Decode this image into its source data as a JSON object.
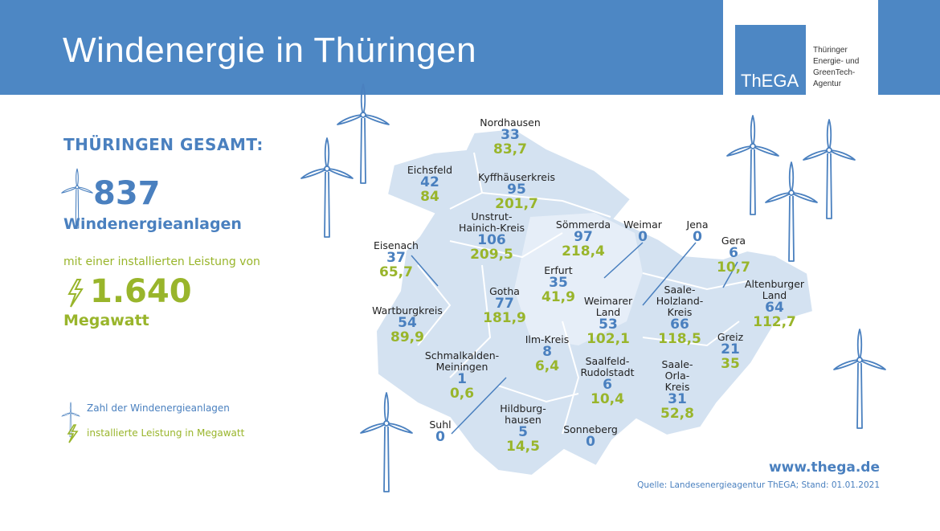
{
  "header": {
    "title": "Windenergie in Thüringen"
  },
  "logo": {
    "text": "ThEGA",
    "subtitle": [
      "Thüringer",
      "Energie- und",
      "GreenTech-",
      "Agentur"
    ]
  },
  "summary": {
    "heading": "THÜRINGEN GESAMT:",
    "turbines": "837",
    "turbines_label": "Windenergieanlagen",
    "capacity_intro": "mit einer installierten Leistung von",
    "capacity": "1.640",
    "capacity_label": "Megawatt"
  },
  "legend": {
    "turbines": "Zahl der Windenergieanlagen",
    "capacity": "installierte Leistung in Megawatt"
  },
  "colors": {
    "header": "#4d87c4",
    "turbines": "#4a80bf",
    "capacity": "#99b52b",
    "map": "#d4e2f1"
  },
  "districts": [
    {
      "name": "Nordhausen",
      "count": "33",
      "mw": "83,7"
    },
    {
      "name": "Eichsfeld",
      "count": "42",
      "mw": "84"
    },
    {
      "name": "Kyffhäuserkreis",
      "count": "95",
      "mw": "201,7"
    },
    {
      "name": "Unstrut-\nHainich-Kreis",
      "count": "106",
      "mw": "209,5"
    },
    {
      "name": "Sömmerda",
      "count": "97",
      "mw": "218,4"
    },
    {
      "name": "Weimar",
      "count": "0"
    },
    {
      "name": "Jena",
      "count": "0"
    },
    {
      "name": "Eisenach",
      "count": "37",
      "mw": "65,7"
    },
    {
      "name": "Gera",
      "count": "6",
      "mw": "10,7"
    },
    {
      "name": "Erfurt",
      "count": "35",
      "mw": "41,9"
    },
    {
      "name": "Gotha",
      "count": "77",
      "mw": "181,9"
    },
    {
      "name": "Weimarer\nLand",
      "count": "53",
      "mw": "102,1"
    },
    {
      "name": "Saale-\nHolzland-\nKreis",
      "count": "66",
      "mw": "118,5"
    },
    {
      "name": "Altenburger\nLand",
      "count": "64",
      "mw": "112,7"
    },
    {
      "name": "Wartburgkreis",
      "count": "54",
      "mw": "89,9"
    },
    {
      "name": "Ilm-Kreis",
      "count": "8",
      "mw": "6,4"
    },
    {
      "name": "Greiz",
      "count": "21",
      "mw": "35"
    },
    {
      "name": "Schmalkalden-\nMeiningen",
      "count": "1",
      "mw": "0,6"
    },
    {
      "name": "Saalfeld-\nRudolstadt",
      "count": "6",
      "mw": "10,4"
    },
    {
      "name": "Saale-\nOrla-\nKreis",
      "count": "31",
      "mw": "52,8"
    },
    {
      "name": "Suhl",
      "count": "0"
    },
    {
      "name": "Hildburg-\nhausen",
      "count": "5",
      "mw": "14,5"
    },
    {
      "name": "Sonneberg",
      "count": "0"
    }
  ],
  "footer": {
    "url": "www.thega.de",
    "source": "Quelle: Landesenergieagentur ThEGA; Stand: 01.01.2021"
  }
}
